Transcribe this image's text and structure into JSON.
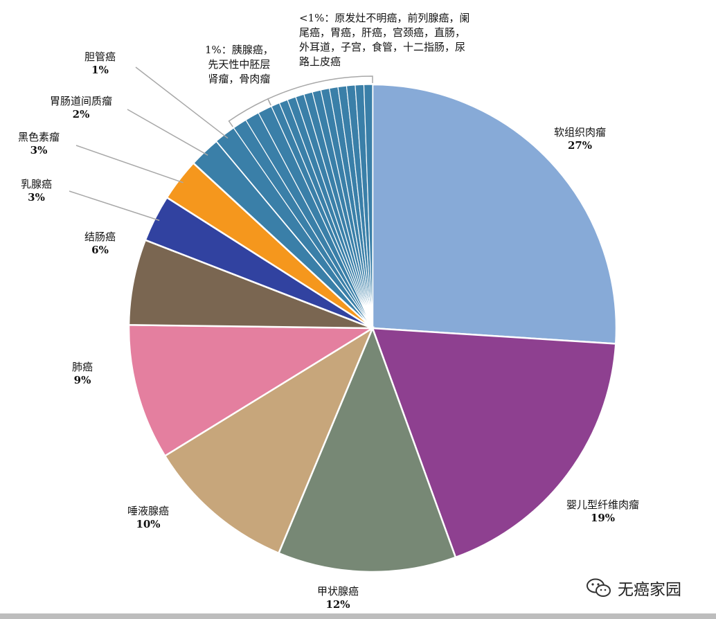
{
  "chart_data": {
    "type": "pie",
    "title": "",
    "slices": [
      {
        "label": "软组织肉瘤",
        "pct_label": "27%",
        "value": 27.5,
        "color": "#87aad7"
      },
      {
        "label": "婴儿型纤维肉瘤",
        "pct_label": "19%",
        "value": 19.5,
        "color": "#8e4090"
      },
      {
        "label": "甲状腺癌",
        "pct_label": "12%",
        "value": 12.5,
        "color": "#778875"
      },
      {
        "label": "唾液腺癌",
        "pct_label": "10%",
        "value": 10.5,
        "color": "#c7a67b"
      },
      {
        "label": "肺癌",
        "pct_label": "9%",
        "value": 9.5,
        "color": "#e47f9f"
      },
      {
        "label": "结肠癌",
        "pct_label": "6%",
        "value": 6.0,
        "color": "#7a6651"
      },
      {
        "label": "乳腺癌",
        "pct_label": "3%",
        "value": 3.3,
        "color": "#3142a0"
      },
      {
        "label": "黑色素瘤",
        "pct_label": "3%",
        "value": 3.0,
        "color": "#f5971d"
      },
      {
        "label": "胃肠道间质瘤",
        "pct_label": "2%",
        "value": 2.2,
        "color": "#3a7fa8"
      },
      {
        "label": "胆管癌",
        "pct_label": "1%",
        "value": 1.5,
        "color": "#3a7fa8"
      },
      {
        "label": "胰腺癌",
        "pct_label": "1%",
        "value": 1.0,
        "color": "#3a7fa8"
      },
      {
        "label": "先天性中胚层肾瘤",
        "pct_label": "1%",
        "value": 1.0,
        "color": "#3a7fa8"
      },
      {
        "label": "骨肉瘤",
        "pct_label": "1%",
        "value": 1.0,
        "color": "#3a7fa8"
      },
      {
        "label": "原发灶不明癌",
        "pct_label": "<1%",
        "value": 0.6,
        "color": "#3a7fa8"
      },
      {
        "label": "前列腺癌",
        "pct_label": "<1%",
        "value": 0.6,
        "color": "#3a7fa8"
      },
      {
        "label": "阑尾癌",
        "pct_label": "<1%",
        "value": 0.6,
        "color": "#3a7fa8"
      },
      {
        "label": "胃癌",
        "pct_label": "<1%",
        "value": 0.6,
        "color": "#3a7fa8"
      },
      {
        "label": "肝癌",
        "pct_label": "<1%",
        "value": 0.6,
        "color": "#3a7fa8"
      },
      {
        "label": "宫颈癌",
        "pct_label": "<1%",
        "value": 0.6,
        "color": "#3a7fa8"
      },
      {
        "label": "直肠",
        "pct_label": "<1%",
        "value": 0.6,
        "color": "#3a7fa8"
      },
      {
        "label": "外耳道",
        "pct_label": "<1%",
        "value": 0.6,
        "color": "#3a7fa8"
      },
      {
        "label": "子宫",
        "pct_label": "<1%",
        "value": 0.6,
        "color": "#3a7fa8"
      },
      {
        "label": "食管",
        "pct_label": "<1%",
        "value": 0.6,
        "color": "#3a7fa8"
      },
      {
        "label": "十二指肠",
        "pct_label": "<1%",
        "value": 0.6,
        "color": "#3a7fa8"
      },
      {
        "label": "尿路上皮癌",
        "pct_label": "<1%",
        "value": 0.6,
        "color": "#3a7fa8"
      }
    ],
    "group_1pct_text": "1%：胰腺癌，\n先天性中胚层\n肾瘤，骨肉瘤",
    "group_lt1pct_text": "<1%：原发灶不明癌，前列腺癌，阑\n尾癌，胃癌，肝癌，宫颈癌，直肠，\n外耳道，子宫，食管，十二指肠，尿\n路上皮癌"
  },
  "watermark": {
    "text": "无癌家园",
    "icon": "wechat-icon"
  }
}
